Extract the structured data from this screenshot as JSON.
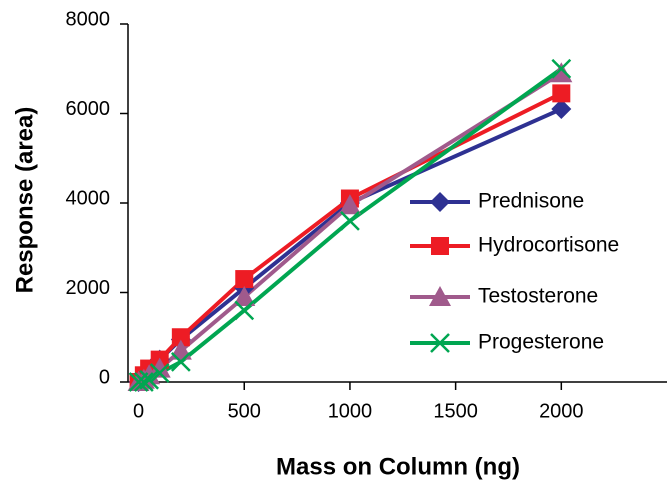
{
  "chart_data": {
    "type": "line",
    "x_label": "Mass on Column (ng)",
    "y_label": "Response (area)",
    "x": [
      0,
      25,
      50,
      100,
      200,
      500,
      1000,
      2000
    ],
    "series": [
      {
        "name": "Prednisone",
        "color": "#2e3192",
        "marker": "diamond",
        "values": [
          0,
          100,
          250,
          500,
          950,
          2100,
          4000,
          6100
        ]
      },
      {
        "name": "Hydrocortisone",
        "color": "#ed1c24",
        "marker": "square",
        "values": [
          0,
          150,
          300,
          500,
          1000,
          2300,
          4100,
          6450
        ]
      },
      {
        "name": "Testosterone",
        "color": "#a05a8c",
        "marker": "triangle",
        "values": [
          0,
          50,
          150,
          300,
          700,
          1900,
          3950,
          6900
        ]
      },
      {
        "name": "Progesterone",
        "color": "#00a651",
        "marker": "x",
        "values": [
          0,
          0,
          50,
          200,
          450,
          1600,
          3600,
          7000
        ]
      }
    ],
    "xlim": [
      -50,
      2500
    ],
    "xticks": [
      0,
      500,
      1000,
      1500,
      2000
    ],
    "ylim": [
      0,
      8000
    ],
    "yticks": [
      0,
      2000,
      4000,
      6000,
      8000
    ],
    "legend": "right"
  }
}
